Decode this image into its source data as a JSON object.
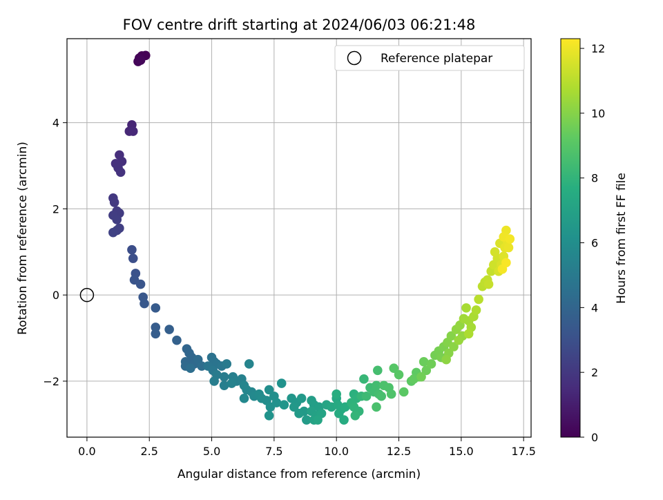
{
  "chart_data": {
    "type": "scatter",
    "title": "FOV centre drift starting at 2024/06/03 06:21:48",
    "xlabel": "Angular distance from reference (arcmin)",
    "ylabel": "Rotation from reference (arcmin)",
    "xlim": [
      -0.8,
      17.8
    ],
    "ylim": [
      -3.3,
      5.95
    ],
    "xticks": [
      "0.0",
      "2.5",
      "5.0",
      "7.5",
      "10.0",
      "12.5",
      "15.0",
      "17.5"
    ],
    "yticks": [
      "−2",
      "0",
      "2",
      "4"
    ],
    "grid": true,
    "legend_position": "top-right",
    "reference": {
      "name": "Reference platepar",
      "x": 0,
      "y": 0
    },
    "colorbar": {
      "label": "Hours from first FF file",
      "colormap": "viridis",
      "range": [
        0,
        12.3
      ],
      "ticks": [
        "0",
        "2",
        "4",
        "6",
        "8",
        "10",
        "12"
      ]
    },
    "points_format": [
      "x",
      "y",
      "hours"
    ],
    "points": [
      [
        2.2,
        5.55,
        0.0
      ],
      [
        2.35,
        5.56,
        0.05
      ],
      [
        2.1,
        5.5,
        0.1
      ],
      [
        2.05,
        5.42,
        0.15
      ],
      [
        2.15,
        5.45,
        0.2
      ],
      [
        1.8,
        3.95,
        1.3
      ],
      [
        1.7,
        3.8,
        1.35
      ],
      [
        1.85,
        3.8,
        1.4
      ],
      [
        1.3,
        3.25,
        1.6
      ],
      [
        1.4,
        3.1,
        1.65
      ],
      [
        1.15,
        3.05,
        1.7
      ],
      [
        1.25,
        2.95,
        1.75
      ],
      [
        1.35,
        2.85,
        1.8
      ],
      [
        1.05,
        2.25,
        2.0
      ],
      [
        1.1,
        2.15,
        2.05
      ],
      [
        1.2,
        1.95,
        2.1
      ],
      [
        1.3,
        1.9,
        2.15
      ],
      [
        1.05,
        1.85,
        2.2
      ],
      [
        1.2,
        1.75,
        2.25
      ],
      [
        1.3,
        1.55,
        2.3
      ],
      [
        1.2,
        1.5,
        2.35
      ],
      [
        1.05,
        1.45,
        2.4
      ],
      [
        1.8,
        1.05,
        2.9
      ],
      [
        1.85,
        0.85,
        2.95
      ],
      [
        1.95,
        0.5,
        3.1
      ],
      [
        1.9,
        0.35,
        3.15
      ],
      [
        2.15,
        0.25,
        3.2
      ],
      [
        2.25,
        -0.05,
        3.3
      ],
      [
        2.3,
        -0.2,
        3.35
      ],
      [
        2.75,
        -0.3,
        3.5
      ],
      [
        2.75,
        -0.75,
        3.55
      ],
      [
        2.75,
        -0.9,
        3.6
      ],
      [
        3.3,
        -0.8,
        3.7
      ],
      [
        3.6,
        -1.05,
        3.8
      ],
      [
        4.0,
        -1.25,
        4.0
      ],
      [
        4.1,
        -1.35,
        4.05
      ],
      [
        4.2,
        -1.45,
        4.1
      ],
      [
        3.95,
        -1.55,
        4.15
      ],
      [
        4.3,
        -1.6,
        4.2
      ],
      [
        3.95,
        -1.65,
        4.25
      ],
      [
        4.45,
        -1.5,
        4.3
      ],
      [
        4.6,
        -1.65,
        4.35
      ],
      [
        4.15,
        -1.7,
        4.4
      ],
      [
        5.0,
        -1.45,
        4.6
      ],
      [
        5.1,
        -1.55,
        4.65
      ],
      [
        5.2,
        -1.6,
        4.7
      ],
      [
        4.85,
        -1.65,
        4.75
      ],
      [
        5.4,
        -1.65,
        4.8
      ],
      [
        5.05,
        -1.75,
        4.85
      ],
      [
        5.6,
        -1.6,
        5.0
      ],
      [
        5.2,
        -1.85,
        5.05
      ],
      [
        5.5,
        -1.9,
        5.1
      ],
      [
        5.1,
        -2.0,
        5.15
      ],
      [
        5.5,
        -2.1,
        5.2
      ],
      [
        5.85,
        -1.9,
        5.25
      ],
      [
        6.0,
        -2.0,
        5.3
      ],
      [
        6.2,
        -1.95,
        5.35
      ],
      [
        5.8,
        -2.05,
        5.4
      ],
      [
        6.5,
        -1.6,
        5.5
      ],
      [
        6.3,
        -2.1,
        5.55
      ],
      [
        6.4,
        -2.2,
        5.6
      ],
      [
        6.6,
        -2.25,
        5.65
      ],
      [
        6.3,
        -2.4,
        5.7
      ],
      [
        6.7,
        -2.35,
        5.75
      ],
      [
        6.9,
        -2.3,
        5.85
      ],
      [
        7.0,
        -2.4,
        5.9
      ],
      [
        7.2,
        -2.45,
        5.95
      ],
      [
        7.3,
        -2.2,
        6.0
      ],
      [
        7.5,
        -2.35,
        6.05
      ],
      [
        7.35,
        -2.6,
        6.1
      ],
      [
        7.6,
        -2.5,
        6.15
      ],
      [
        7.8,
        -2.05,
        6.2
      ],
      [
        7.3,
        -2.8,
        6.25
      ],
      [
        7.9,
        -2.55,
        6.35
      ],
      [
        8.2,
        -2.4,
        6.4
      ],
      [
        8.4,
        -2.5,
        6.45
      ],
      [
        8.3,
        -2.6,
        6.5
      ],
      [
        8.6,
        -2.4,
        6.55
      ],
      [
        8.7,
        -2.7,
        6.6
      ],
      [
        8.5,
        -2.75,
        6.65
      ],
      [
        8.8,
        -2.9,
        6.7
      ],
      [
        9.0,
        -2.45,
        6.8
      ],
      [
        9.1,
        -2.55,
        6.85
      ],
      [
        9.3,
        -2.6,
        6.9
      ],
      [
        9.0,
        -2.7,
        6.95
      ],
      [
        9.2,
        -2.8,
        7.0
      ],
      [
        9.1,
        -2.9,
        7.05
      ],
      [
        9.4,
        -2.75,
        7.1
      ],
      [
        9.6,
        -2.55,
        7.15
      ],
      [
        9.25,
        -2.9,
        7.2
      ],
      [
        9.8,
        -2.6,
        7.3
      ],
      [
        10.0,
        -2.4,
        7.35
      ],
      [
        10.05,
        -2.55,
        7.4
      ],
      [
        10.2,
        -2.65,
        7.45
      ],
      [
        10.1,
        -2.75,
        7.5
      ],
      [
        10.3,
        -2.9,
        7.55
      ],
      [
        10.35,
        -2.6,
        7.6
      ],
      [
        10.0,
        -2.3,
        7.65
      ],
      [
        10.7,
        -2.3,
        7.8
      ],
      [
        10.8,
        -2.4,
        7.85
      ],
      [
        10.6,
        -2.5,
        7.9
      ],
      [
        10.7,
        -2.6,
        7.95
      ],
      [
        10.9,
        -2.7,
        8.0
      ],
      [
        10.75,
        -2.8,
        8.05
      ],
      [
        11.0,
        -2.35,
        8.1
      ],
      [
        11.1,
        -1.95,
        8.15
      ],
      [
        11.2,
        -2.35,
        8.3
      ],
      [
        11.35,
        -2.15,
        8.35
      ],
      [
        11.5,
        -2.25,
        8.4
      ],
      [
        11.6,
        -2.1,
        8.45
      ],
      [
        11.7,
        -2.3,
        8.5
      ],
      [
        11.65,
        -1.75,
        8.55
      ],
      [
        11.8,
        -2.35,
        8.6
      ],
      [
        11.6,
        -2.6,
        8.65
      ],
      [
        11.9,
        -2.1,
        8.7
      ],
      [
        12.1,
        -2.15,
        8.75
      ],
      [
        12.2,
        -2.3,
        8.8
      ],
      [
        12.3,
        -1.7,
        9.0
      ],
      [
        12.5,
        -1.85,
        9.05
      ],
      [
        12.7,
        -2.25,
        9.1
      ],
      [
        13.0,
        -2.0,
        9.15
      ],
      [
        13.2,
        -1.8,
        9.2
      ],
      [
        13.3,
        -1.9,
        9.25
      ],
      [
        13.1,
        -1.95,
        9.3
      ],
      [
        13.5,
        -1.55,
        9.45
      ],
      [
        13.6,
        -1.75,
        9.5
      ],
      [
        13.8,
        -1.6,
        9.55
      ],
      [
        13.4,
        -1.9,
        9.6
      ],
      [
        13.95,
        -1.4,
        9.65
      ],
      [
        14.1,
        -1.3,
        9.7
      ],
      [
        14.2,
        -1.45,
        9.75
      ],
      [
        14.3,
        -1.2,
        9.8
      ],
      [
        14.45,
        -1.1,
        9.95
      ],
      [
        14.6,
        -0.95,
        10.0
      ],
      [
        14.5,
        -1.35,
        10.05
      ],
      [
        14.7,
        -1.2,
        10.1
      ],
      [
        14.4,
        -1.5,
        10.15
      ],
      [
        14.8,
        -0.8,
        10.2
      ],
      [
        14.95,
        -0.7,
        10.25
      ],
      [
        15.05,
        -0.95,
        10.3
      ],
      [
        14.9,
        -1.05,
        10.35
      ],
      [
        15.1,
        -0.55,
        10.5
      ],
      [
        15.3,
        -0.6,
        10.55
      ],
      [
        15.4,
        -0.75,
        10.6
      ],
      [
        15.2,
        -0.3,
        10.65
      ],
      [
        15.5,
        -0.5,
        10.7
      ],
      [
        15.3,
        -0.9,
        10.75
      ],
      [
        15.6,
        -0.35,
        10.8
      ],
      [
        15.7,
        -0.1,
        11.0
      ],
      [
        15.85,
        0.2,
        11.05
      ],
      [
        15.95,
        0.3,
        11.1
      ],
      [
        16.05,
        0.35,
        11.15
      ],
      [
        16.2,
        0.55,
        11.2
      ],
      [
        16.1,
        0.25,
        11.25
      ],
      [
        16.3,
        0.7,
        11.4
      ],
      [
        16.45,
        0.85,
        11.45
      ],
      [
        16.35,
        1.0,
        11.5
      ],
      [
        16.5,
        0.55,
        11.55
      ],
      [
        16.6,
        0.7,
        11.6
      ],
      [
        16.55,
        1.2,
        11.65
      ],
      [
        16.7,
        0.9,
        11.7
      ],
      [
        16.75,
        1.1,
        11.85
      ],
      [
        16.85,
        1.25,
        11.9
      ],
      [
        16.9,
        1.1,
        11.95
      ],
      [
        16.8,
        1.5,
        12.0
      ],
      [
        16.7,
        1.35,
        12.05
      ],
      [
        16.95,
        1.3,
        12.1
      ],
      [
        16.65,
        0.6,
        12.15
      ],
      [
        16.8,
        0.75,
        12.2
      ]
    ]
  }
}
